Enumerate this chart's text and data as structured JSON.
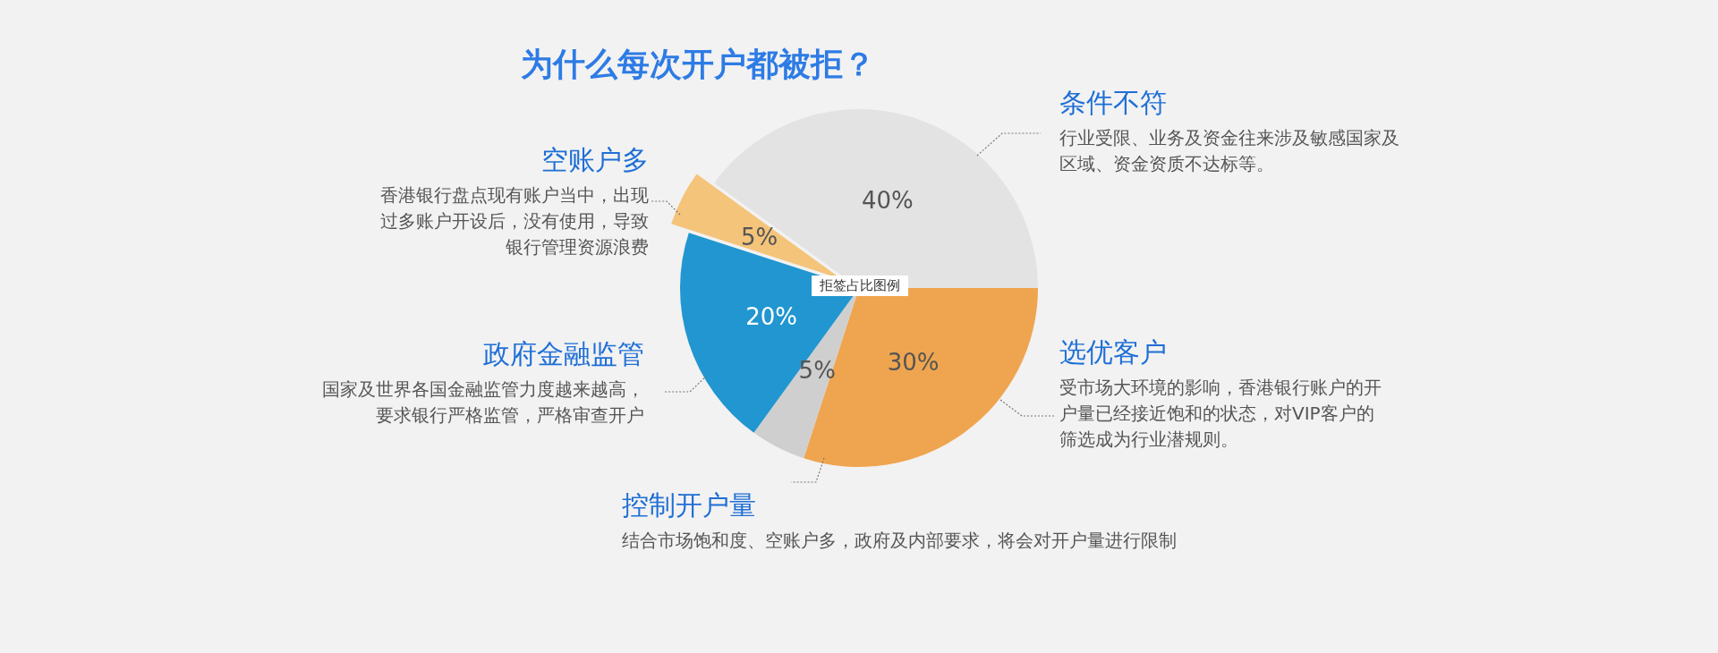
{
  "chart_data": {
    "type": "pie",
    "title": "为什么每次开户都被拒？",
    "categories": [
      "选优客户",
      "控制开户量",
      "政府金融监管",
      "空账户多",
      "条件不符"
    ],
    "values": [
      30,
      5,
      20,
      5,
      40
    ],
    "colors": [
      "#efa54f",
      "#d0cfcf",
      "#2196d0",
      "#f4c47a",
      "#e3e3e3"
    ],
    "value_labels": [
      "30%",
      "5%",
      "20%",
      "5%",
      "40%"
    ],
    "annotations": [
      "拒签占比图例",
      "受市场大环境的影响，香港银行账户的开户量已经接近饱和的状态，对VIP客户的筛选成为行业潜规则。",
      "结合市场饱和度、空账户多，政府及内部要求，将会对开户量进行限制",
      "国家及世界各国金融监管力度越来越高，要求银行严格监管，严格审查开户",
      "香港银行盘点现有账户当中，出现过多账户开设后，没有使用，导致银行管理资源浪费",
      "行业受限、业务及资金往来涉及敏感国家及区域、资金资质不达标等。"
    ],
    "legend": false
  }
}
